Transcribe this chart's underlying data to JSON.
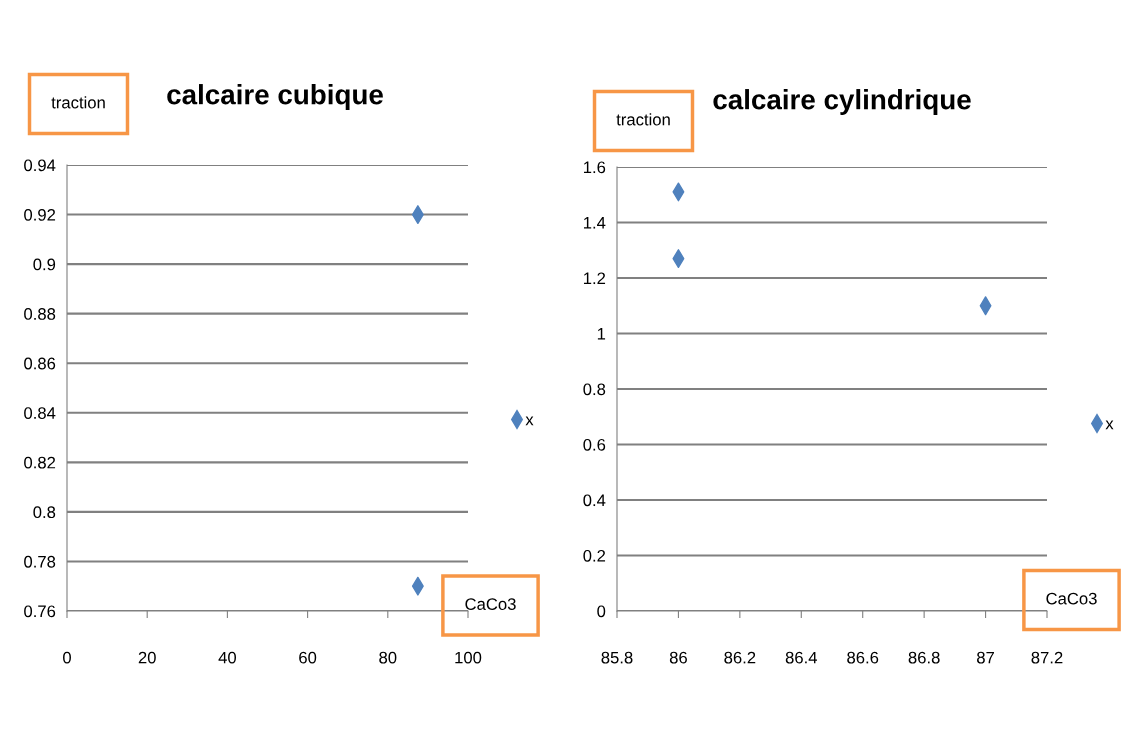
{
  "chart_data": [
    {
      "type": "scatter",
      "title": "calcaire cubique",
      "xlabel": "CaCo3",
      "ylabel": "traction",
      "series": [
        {
          "name": "x",
          "color": "#4f81bd",
          "x": [
            87.5,
            87.5
          ],
          "values": [
            0.92,
            0.77
          ]
        }
      ],
      "xlim": [
        0,
        100
      ],
      "xticks": [
        0,
        20,
        40,
        60,
        80,
        100
      ],
      "ylim": [
        0.76,
        0.94
      ],
      "yticks": [
        0.76,
        0.78,
        0.8,
        0.82,
        0.84,
        0.86,
        0.88,
        0.9,
        0.92,
        0.94
      ],
      "grid": "y",
      "legend": "right",
      "marker": "diamond"
    },
    {
      "type": "scatter",
      "title": "calcaire cylindrique",
      "xlabel": "CaCo3",
      "ylabel": "traction",
      "series": [
        {
          "name": "x",
          "color": "#4f81bd",
          "x": [
            86,
            86,
            87
          ],
          "values": [
            1.51,
            1.27,
            1.1
          ]
        }
      ],
      "xlim": [
        85.8,
        87.2
      ],
      "xticks": [
        85.8,
        86,
        86.2,
        86.4,
        86.6,
        86.8,
        87,
        87.2
      ],
      "ylim": [
        0,
        1.6
      ],
      "yticks": [
        0,
        0.2,
        0.4,
        0.6,
        0.8,
        1,
        1.2,
        1.4,
        1.6
      ],
      "grid": "y",
      "legend": "right",
      "marker": "diamond"
    }
  ]
}
